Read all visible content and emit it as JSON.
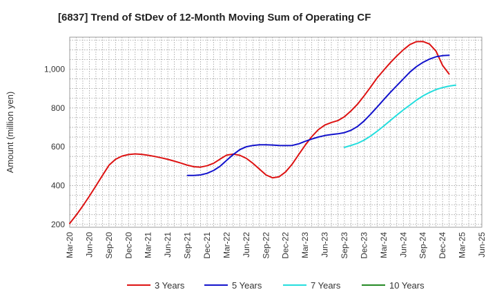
{
  "chart_data": {
    "type": "line",
    "title": "[6837]  Trend of StDev of 12-Month Moving Sum of Operating CF",
    "xlabel": "",
    "ylabel": "Amount (million yen)",
    "ylim": [
      185,
      1165
    ],
    "yticks": [
      200,
      400,
      600,
      800,
      1000
    ],
    "ytick_labels": [
      "200",
      "400",
      "600",
      "800",
      "1,000"
    ],
    "x_start": "2020-03",
    "x_end": "2025-06",
    "xtick_labels": [
      "Mar-20",
      "Jun-20",
      "Sep-20",
      "Dec-20",
      "Mar-21",
      "Jun-21",
      "Sep-21",
      "Dec-21",
      "Mar-22",
      "Jun-22",
      "Sep-22",
      "Dec-22",
      "Mar-23",
      "Jun-23",
      "Sep-23",
      "Dec-23",
      "Mar-24",
      "Jun-24",
      "Sep-24",
      "Dec-24",
      "Mar-25",
      "Jun-25"
    ],
    "grid": true,
    "legend_position": "bottom",
    "series": [
      {
        "name": "3 Years",
        "color": "#dd1111",
        "start_month_index": 0,
        "values": [
          205,
          248,
          295,
          345,
          398,
          452,
          505,
          535,
          552,
          560,
          563,
          561,
          556,
          550,
          543,
          535,
          526,
          516,
          505,
          497,
          495,
          502,
          515,
          537,
          557,
          562,
          556,
          540,
          515,
          485,
          455,
          440,
          445,
          470,
          510,
          560,
          608,
          652,
          688,
          712,
          725,
          735,
          755,
          785,
          820,
          862,
          908,
          955,
          995,
          1033,
          1068,
          1100,
          1127,
          1142,
          1143,
          1130,
          1093,
          1020,
          975
        ]
      },
      {
        "name": "5 Years",
        "color": "#1111cc",
        "start_month_index": 18,
        "values": [
          452,
          452,
          455,
          463,
          478,
          500,
          530,
          560,
          585,
          600,
          607,
          610,
          610,
          609,
          607,
          606,
          607,
          615,
          628,
          640,
          650,
          658,
          663,
          667,
          673,
          685,
          705,
          733,
          768,
          805,
          843,
          880,
          915,
          950,
          985,
          1013,
          1035,
          1052,
          1064,
          1070,
          1072
        ]
      },
      {
        "name": "7 Years",
        "color": "#22dddd",
        "start_month_index": 42,
        "values": [
          597,
          607,
          618,
          634,
          655,
          680,
          707,
          735,
          763,
          790,
          815,
          840,
          862,
          880,
          895,
          905,
          913,
          918
        ]
      },
      {
        "name": "10 Years",
        "color": "#228822",
        "start_month_index": 0,
        "values": []
      }
    ]
  }
}
